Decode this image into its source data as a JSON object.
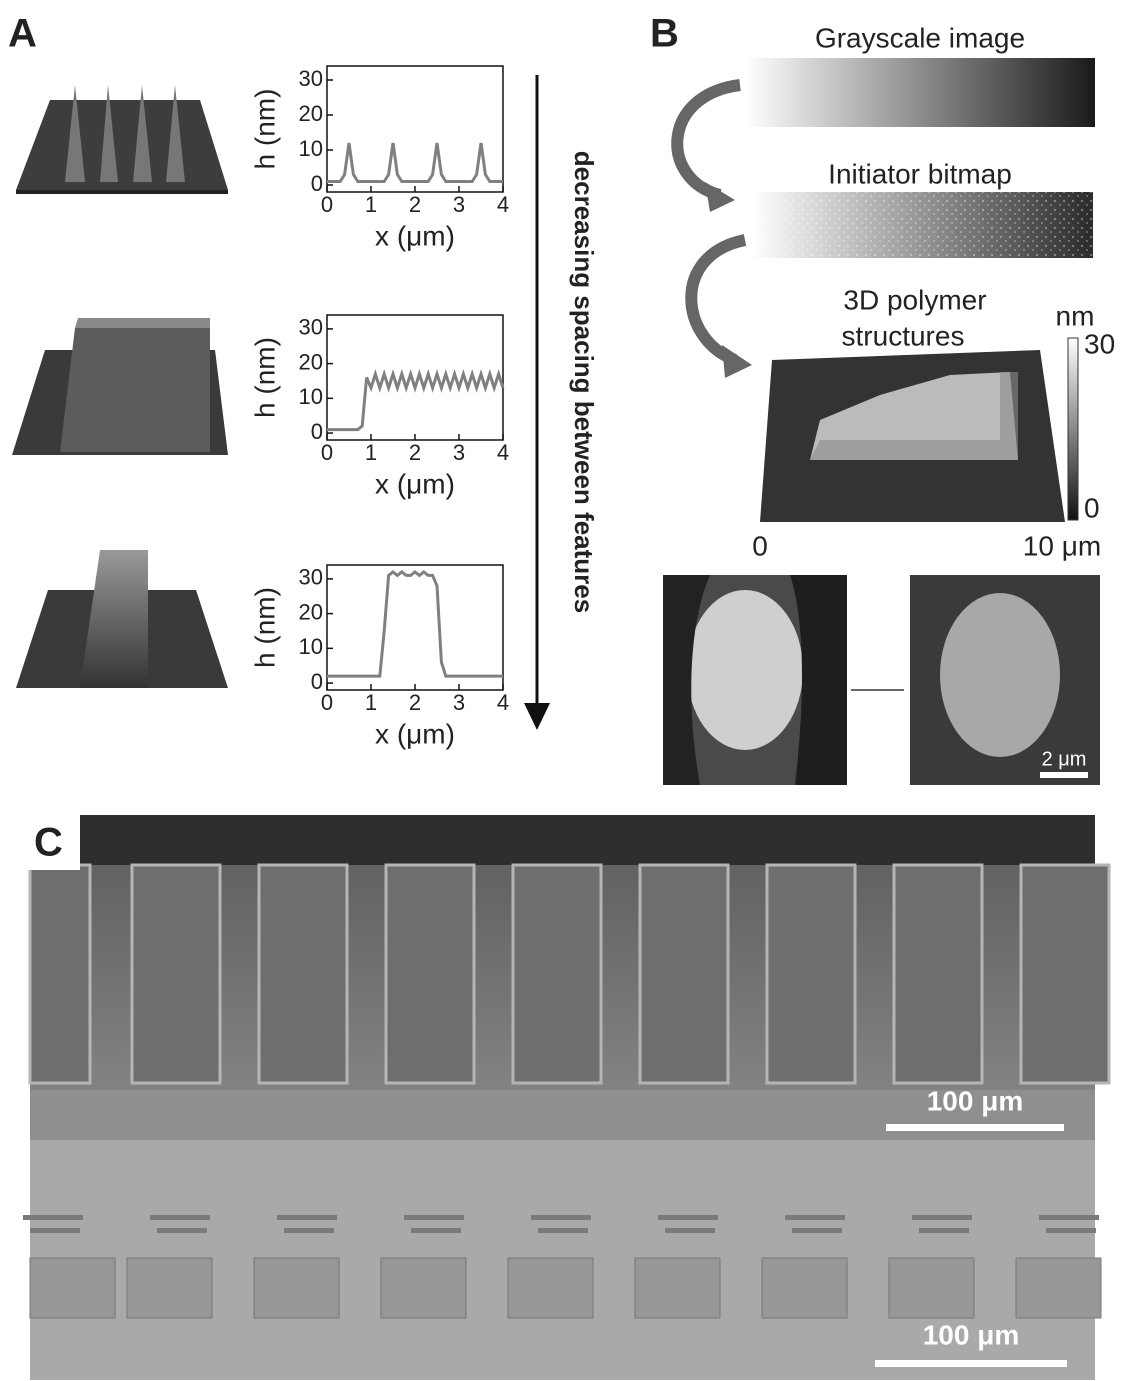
{
  "panel_labels": [
    "A",
    "B",
    "C"
  ],
  "panel_a": {
    "arrow_label": "decreasing spacing between features"
  },
  "panel_b": {
    "steps": [
      "Grayscale image",
      "Initiator bitmap"
    ],
    "structure_label": [
      "3D polymer",
      "structures"
    ],
    "colorbar": {
      "unit": "nm",
      "top": "30",
      "bottom": "0"
    },
    "axis": [
      "0",
      "10 μm"
    ],
    "scale_bar": "2 μm"
  },
  "panel_c": {
    "scale_bars": [
      "100 μm",
      "100 μm"
    ]
  },
  "chart_data": [
    {
      "type": "line",
      "xlabel": "x (μm)",
      "ylabel": "h (nm)",
      "xlim": [
        0,
        4
      ],
      "ylim": [
        -2,
        34
      ],
      "xticks": [
        0,
        1,
        2,
        3,
        4
      ],
      "yticks": [
        0,
        10,
        20,
        30
      ],
      "x": [
        0,
        0.1,
        0.2,
        0.3,
        0.4,
        0.5,
        0.6,
        0.7,
        0.8,
        0.9,
        1,
        1.1,
        1.2,
        1.3,
        1.4,
        1.5,
        1.6,
        1.7,
        1.8,
        1.9,
        2,
        2.1,
        2.2,
        2.3,
        2.4,
        2.5,
        2.6,
        2.7,
        2.8,
        2.9,
        3,
        3.1,
        3.2,
        3.3,
        3.4,
        3.5,
        3.6,
        3.7,
        3.8,
        3.9,
        4
      ],
      "series": [
        {
          "color": "#808080",
          "values": [
            1,
            1,
            1,
            1,
            3,
            12,
            3,
            1,
            1,
            1,
            1,
            1,
            1,
            1,
            3,
            12,
            3,
            1,
            1,
            1,
            1,
            1,
            1,
            1,
            3,
            12,
            3,
            1,
            1,
            1,
            1,
            1,
            1,
            1,
            3,
            12,
            3,
            1,
            1,
            1,
            1
          ]
        }
      ]
    },
    {
      "type": "line",
      "xlabel": "x (μm)",
      "ylabel": "h (nm)",
      "xlim": [
        0,
        4
      ],
      "ylim": [
        -2,
        34
      ],
      "xticks": [
        0,
        1,
        2,
        3,
        4
      ],
      "yticks": [
        0,
        10,
        20,
        30
      ],
      "x": [
        0,
        0.1,
        0.2,
        0.3,
        0.4,
        0.5,
        0.6,
        0.7,
        0.8,
        0.9,
        1,
        1.1,
        1.2,
        1.3,
        1.4,
        1.5,
        1.6,
        1.7,
        1.8,
        1.9,
        2,
        2.1,
        2.2,
        2.3,
        2.4,
        2.5,
        2.6,
        2.7,
        2.8,
        2.9,
        3,
        3.1,
        3.2,
        3.3,
        3.4,
        3.5,
        3.6,
        3.7,
        3.8,
        3.9,
        4
      ],
      "series": [
        {
          "color": "#808080",
          "values": [
            1,
            1,
            1,
            1,
            1,
            1,
            1,
            1,
            2,
            16,
            13,
            17,
            13,
            17,
            13,
            17,
            13,
            17,
            13,
            17,
            13,
            17,
            13,
            17,
            13,
            17,
            13,
            17,
            13,
            17,
            13,
            17,
            13,
            17,
            13,
            17,
            13,
            17,
            13,
            17,
            13
          ]
        }
      ]
    },
    {
      "type": "line",
      "xlabel": "x (μm)",
      "ylabel": "h (nm)",
      "xlim": [
        0,
        4
      ],
      "ylim": [
        -2,
        34
      ],
      "xticks": [
        0,
        1,
        2,
        3,
        4
      ],
      "yticks": [
        0,
        10,
        20,
        30
      ],
      "x": [
        0,
        0.1,
        0.2,
        0.3,
        0.4,
        0.5,
        0.6,
        0.7,
        0.8,
        0.9,
        1,
        1.1,
        1.2,
        1.3,
        1.4,
        1.5,
        1.6,
        1.7,
        1.8,
        1.9,
        2,
        2.1,
        2.2,
        2.3,
        2.4,
        2.5,
        2.6,
        2.7,
        2.8,
        2.9,
        3,
        3.1,
        3.2,
        3.3,
        3.4,
        3.5,
        3.6,
        3.7,
        3.8,
        3.9,
        4
      ],
      "series": [
        {
          "color": "#808080",
          "values": [
            2,
            2,
            2,
            2,
            2,
            2,
            2,
            2,
            2,
            2,
            2,
            2,
            2,
            15,
            31,
            32,
            31,
            32,
            31,
            31,
            32,
            31,
            32,
            31,
            31,
            28,
            6,
            2,
            2,
            2,
            2,
            2,
            2,
            2,
            2,
            2,
            2,
            2,
            2,
            2,
            2
          ]
        }
      ]
    }
  ]
}
